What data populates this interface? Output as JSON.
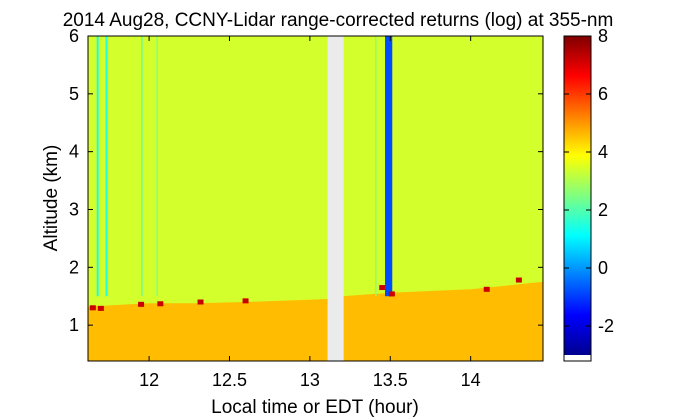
{
  "chart_data": {
    "type": "heatmap",
    "title": "2014 Aug28, CCNY-Lidar range-corrected returns (log) at 355-nm",
    "xlabel": "Local time or EDT (hour)",
    "ylabel": "Altitude (km)",
    "xlim": [
      11.62,
      14.45
    ],
    "ylim": [
      0.38,
      6.0
    ],
    "x_ticks": [
      12,
      12.5,
      13,
      13.5,
      14
    ],
    "x_tick_labels": [
      "12",
      "12.5",
      "13",
      "13.5",
      "14"
    ],
    "y_ticks": [
      1,
      2,
      3,
      4,
      5,
      6
    ],
    "y_tick_labels": [
      "1",
      "2",
      "3",
      "4",
      "5",
      "6"
    ],
    "colorbar": {
      "colormap": "jet",
      "range": [
        -3,
        8
      ],
      "ticks": [
        -2,
        0,
        2,
        4,
        6,
        8
      ],
      "tick_labels": [
        "-2",
        "0",
        "2",
        "4",
        "6",
        "8"
      ]
    },
    "background_value": 3.4,
    "boundary_layer": {
      "top_altitude_km": [
        {
          "x": 11.62,
          "y": 1.32
        },
        {
          "x": 12.0,
          "y": 1.38
        },
        {
          "x": 12.3,
          "y": 1.38
        },
        {
          "x": 12.6,
          "y": 1.4
        },
        {
          "x": 13.1,
          "y": 1.45
        },
        {
          "x": 13.2,
          "y": 1.5
        },
        {
          "x": 13.5,
          "y": 1.56
        },
        {
          "x": 14.0,
          "y": 1.62
        },
        {
          "x": 14.45,
          "y": 1.75
        }
      ],
      "value": 4.6
    },
    "data_gap": {
      "start": 13.11,
      "end": 13.21
    },
    "low_signal_columns": [
      {
        "x": 11.68,
        "width": 0.012,
        "value": 1.3
      },
      {
        "x": 11.735,
        "width": 0.012,
        "value": 1.5
      },
      {
        "x": 11.955,
        "width": 0.01,
        "value": 2.3
      },
      {
        "x": 12.05,
        "width": 0.01,
        "value": 2.6
      },
      {
        "x": 13.41,
        "width": 0.01,
        "value": 2.7
      },
      {
        "x": 13.49,
        "width": 0.045,
        "value": -0.8
      }
    ],
    "cloud_base_spots": [
      {
        "x": 11.65,
        "y": 1.3
      },
      {
        "x": 11.7,
        "y": 1.29
      },
      {
        "x": 11.95,
        "y": 1.36
      },
      {
        "x": 12.07,
        "y": 1.37
      },
      {
        "x": 12.32,
        "y": 1.4
      },
      {
        "x": 12.6,
        "y": 1.42
      },
      {
        "x": 13.45,
        "y": 1.65
      },
      {
        "x": 13.51,
        "y": 1.54
      },
      {
        "x": 14.1,
        "y": 1.62
      },
      {
        "x": 14.3,
        "y": 1.78
      }
    ]
  }
}
